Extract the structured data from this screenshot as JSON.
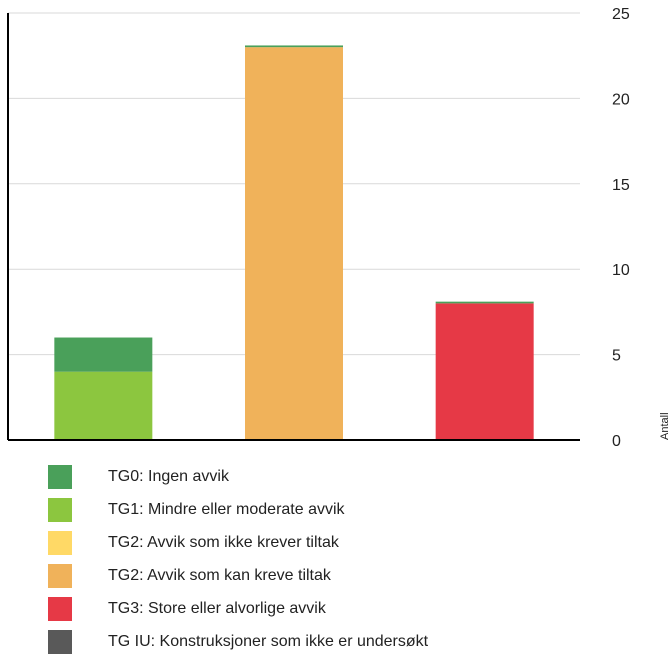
{
  "chart_data": {
    "type": "bar",
    "stacked": true,
    "categories": [
      "",
      "",
      ""
    ],
    "ylabel": "Antall",
    "ylim": [
      0,
      25
    ],
    "yticks": [
      0,
      5,
      10,
      15,
      20,
      25
    ],
    "y_axis_position": "right",
    "grid": true,
    "legend_position": "bottom",
    "series": [
      {
        "name": "TG0: Ingen avvik",
        "color": "#4aa05a",
        "values": [
          2,
          0.1,
          0.1
        ]
      },
      {
        "name": "TG1: Mindre eller moderate avvik",
        "color": "#8cc63f",
        "values": [
          4,
          0,
          0
        ]
      },
      {
        "name": "TG2: Avvik som ikke krever tiltak",
        "color": "#ffd966",
        "values": [
          0,
          0,
          0
        ]
      },
      {
        "name": "TG2: Avvik som kan kreve tiltak",
        "color": "#f0b25a",
        "values": [
          0,
          23,
          0
        ]
      },
      {
        "name": "TG3: Store eller alvorlige avvik",
        "color": "#e63946",
        "values": [
          0,
          0,
          8
        ]
      },
      {
        "name": "TG IU: Konstruksjoner som ikke er undersøkt",
        "color": "#595959",
        "values": [
          0,
          0,
          0
        ]
      }
    ]
  }
}
